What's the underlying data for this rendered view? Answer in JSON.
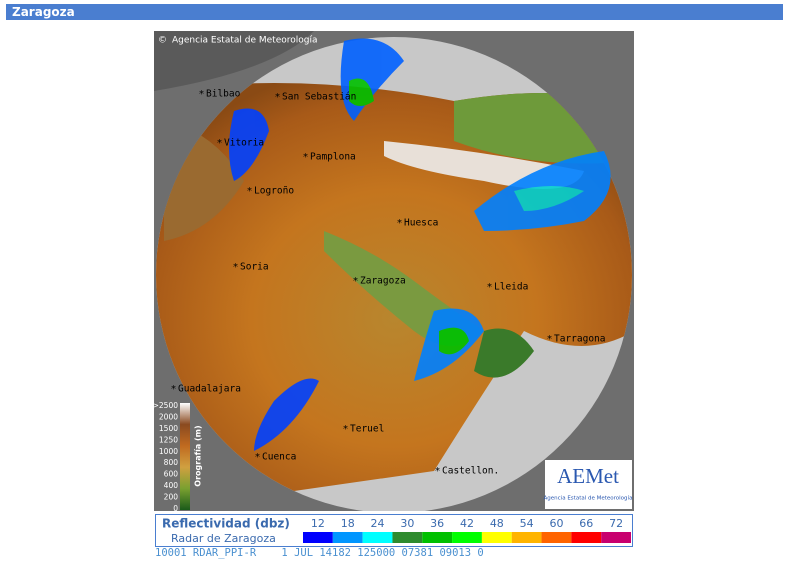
{
  "header": {
    "title": "Zaragoza"
  },
  "map": {
    "copyright": "Agencia Estatal de Meteorología",
    "cities": [
      "Bilbao",
      "San Sebastián",
      "Vitoria",
      "Pamplona",
      "Logroño",
      "Huesca",
      "Soria",
      "Zaragoza",
      "Lleida",
      "Tarragona",
      "Guadalajara",
      "Teruel",
      "Cuenca",
      "Castellon."
    ],
    "orography": {
      "label": "Orografía (m)",
      "ticks": [
        ">2500",
        "2000",
        "1500",
        "1250",
        "1000",
        "800",
        "600",
        "400",
        "200",
        "0"
      ]
    },
    "logo": {
      "name": "AEMet",
      "subtitle": "Agencia Estatal de Meteorología"
    }
  },
  "legend": {
    "title": "Reflectividad (dbz)",
    "subtitle": "Radar de Zaragoza",
    "levels": [
      {
        "value": 12,
        "color": "#0000fe"
      },
      {
        "value": 18,
        "color": "#0096ff"
      },
      {
        "value": 24,
        "color": "#00ffff"
      },
      {
        "value": 30,
        "color": "#2e8b2e"
      },
      {
        "value": 36,
        "color": "#00c000"
      },
      {
        "value": 42,
        "color": "#00ff00"
      },
      {
        "value": 48,
        "color": "#ffff00"
      },
      {
        "value": 54,
        "color": "#ffb400"
      },
      {
        "value": 60,
        "color": "#ff6400"
      },
      {
        "value": 66,
        "color": "#ff0000"
      },
      {
        "value": 72,
        "color": "#c8006e"
      }
    ]
  },
  "status_line": "10001 RDAR_PPI-R    1 JUL 14182 125000 07381 09013 0"
}
